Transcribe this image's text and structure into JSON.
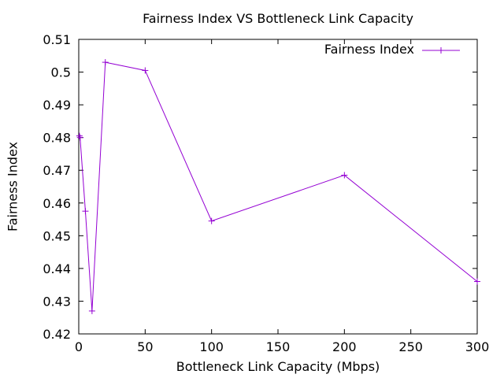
{
  "chart_data": {
    "type": "line",
    "title": "Fairness Index VS Bottleneck Link Capacity",
    "xlabel": "Bottleneck Link Capacity (Mbps)",
    "ylabel": "Fairness Index",
    "xlim": [
      0,
      300
    ],
    "ylim": [
      0.42,
      0.51
    ],
    "xticks": [
      0,
      50,
      100,
      150,
      200,
      250,
      300
    ],
    "xtick_labels": [
      "0",
      "50",
      "100",
      "150",
      "200",
      "250",
      "300"
    ],
    "yticks": [
      0.42,
      0.43,
      0.44,
      0.45,
      0.46,
      0.47,
      0.48,
      0.49,
      0.5,
      0.51
    ],
    "ytick_labels": [
      "0.42",
      "0.43",
      "0.44",
      "0.45",
      "0.46",
      "0.47",
      "0.48",
      "0.49",
      "0.5",
      "0.51"
    ],
    "grid": false,
    "legend_position": "top-right",
    "series": [
      {
        "name": "Fairness Index",
        "color": "#9400d3",
        "marker": "plus",
        "x": [
          0.5,
          1,
          5,
          10,
          20,
          50,
          100,
          200,
          300
        ],
        "y": [
          0.4805,
          0.48,
          0.4575,
          0.427,
          0.503,
          0.5005,
          0.4545,
          0.4685,
          0.436
        ]
      }
    ]
  }
}
